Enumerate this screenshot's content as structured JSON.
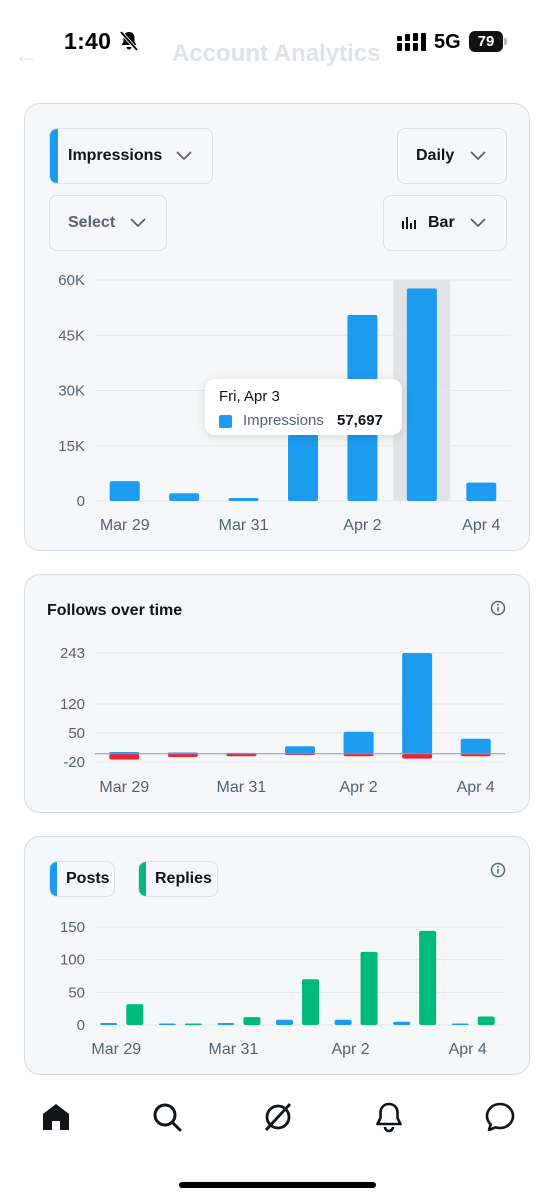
{
  "status_bar": {
    "time": "1:40",
    "network": "5G",
    "battery": "79"
  },
  "header": {
    "title": "Account Analytics"
  },
  "impressions_card": {
    "metric_select": "Impressions",
    "period_select": "Daily",
    "compare_select": "Select",
    "chart_type_select": "Bar",
    "tooltip": {
      "date": "Fri, Apr 3",
      "label": "Impressions",
      "value": "57,697"
    }
  },
  "follows_card": {
    "title": "Follows over time"
  },
  "posts_card": {
    "legend": [
      "Posts",
      "Replies"
    ]
  },
  "colors": {
    "blue": "#1d9bf0",
    "red": "#f4212e",
    "green": "#00ba7c",
    "highlight": "#e1e3e4"
  },
  "icons": [
    "bell-off-icon",
    "signal-icon",
    "back-arrow-icon",
    "chevron-down-icon",
    "bar-chart-icon",
    "info-icon",
    "home-icon",
    "search-icon",
    "grok-icon",
    "bell-icon",
    "messages-icon"
  ],
  "chart_data": [
    {
      "type": "bar",
      "x_ticks": [
        "Mar 29",
        "Mar 31",
        "Apr 2",
        "Apr 4"
      ],
      "y_ticks": [
        "60K",
        "45K",
        "30K",
        "15K",
        "0"
      ],
      "ylim": [
        0,
        60000
      ],
      "series": [
        {
          "name": "Impressions",
          "values": [
            5400,
            2100,
            800,
            18000,
            50500,
            57697,
            5000
          ]
        }
      ],
      "highlighted_index": 5
    },
    {
      "type": "bar",
      "x_ticks": [
        "Mar 29",
        "Mar 31",
        "Apr 2",
        "Apr 4"
      ],
      "y_ticks": [
        "243",
        "120",
        "50",
        "-20"
      ],
      "ylim": [
        -20,
        243
      ],
      "series": [
        {
          "values": [
            4,
            3,
            2,
            18,
            53,
            243,
            36
          ]
        },
        {
          "values": [
            -14,
            -8,
            -6,
            -3,
            -6,
            -12,
            -6
          ]
        }
      ]
    },
    {
      "type": "bar",
      "x_ticks": [
        "Mar 29",
        "Mar 31",
        "Apr 2",
        "Apr 4"
      ],
      "y_ticks": [
        "150",
        "100",
        "50",
        "0"
      ],
      "ylim": [
        0,
        150
      ],
      "series": [
        {
          "name": "Posts",
          "values": [
            3,
            1,
            3,
            8,
            8,
            5,
            1
          ]
        },
        {
          "name": "Replies",
          "values": [
            32,
            1,
            12,
            70,
            112,
            144,
            13
          ]
        }
      ]
    }
  ]
}
